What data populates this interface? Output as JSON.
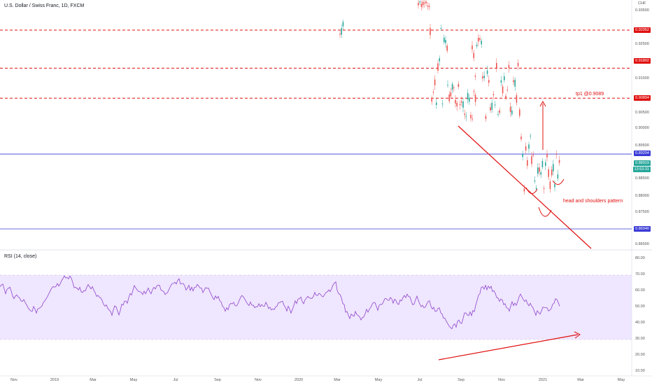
{
  "header": {
    "title": "U.S. Dollar / Swiss Franc, 1D, FXCM",
    "currency": "CHF",
    "rsi_title": "RSI (14, close)"
  },
  "colors": {
    "candle_up": "#26a69a",
    "candle_down": "#ef5350",
    "level_red": "#e01010",
    "level_blue": "#3a3ad6",
    "rsi_line": "#8e44c9",
    "rsi_band": "#efe6ff"
  },
  "price_axis": {
    "ticks": [
      "0.93500",
      "0.92500",
      "0.91500",
      "0.90500",
      "0.90000",
      "0.89500",
      "0.88500",
      "0.88000",
      "0.87500",
      "0.86500"
    ],
    "labels": [
      {
        "text": "0.92952",
        "color": "#e01010",
        "value": 0.92952
      },
      {
        "text": "0.91802",
        "color": "#e01010",
        "value": 0.91802
      },
      {
        "text": "0.90894",
        "color": "#e01010",
        "value": 0.90894
      },
      {
        "text": "0.89204",
        "color": "#3a3ad6",
        "value": 0.89204
      },
      {
        "text": "0.88919",
        "color": "#26a69a",
        "value": 0.88919
      },
      {
        "text": "13:53:31",
        "color": "#26a69a",
        "value": 0.8872
      },
      {
        "text": "0.86940",
        "color": "#3a3ad6",
        "value": 0.8694
      }
    ]
  },
  "rsi_axis": {
    "ticks": [
      "80.00",
      "70.00",
      "60.00",
      "50.00",
      "40.00",
      "30.00",
      "20.00",
      "10.00"
    ]
  },
  "time_axis": {
    "ticks": [
      "Nov",
      "2019",
      "Mar",
      "May",
      "Jul",
      "Sep",
      "Nov",
      "2020",
      "Mar",
      "May",
      "Jul",
      "Sep",
      "Nov",
      "2021",
      "Mar",
      "May"
    ]
  },
  "annotations": {
    "tp1": "tp1 @0.9089",
    "pattern": "head and shoulders pattern"
  },
  "levels": [
    {
      "value": 0.92952,
      "style": "dashed",
      "color": "#e01010"
    },
    {
      "value": 0.91802,
      "style": "dashed",
      "color": "#e01010"
    },
    {
      "value": 0.90894,
      "style": "dashed",
      "color": "#e01010"
    },
    {
      "value": 0.89204,
      "style": "solid",
      "color": "#3a3ad6"
    },
    {
      "value": 0.8694,
      "style": "solid",
      "color": "#3a3ad6"
    }
  ]
}
